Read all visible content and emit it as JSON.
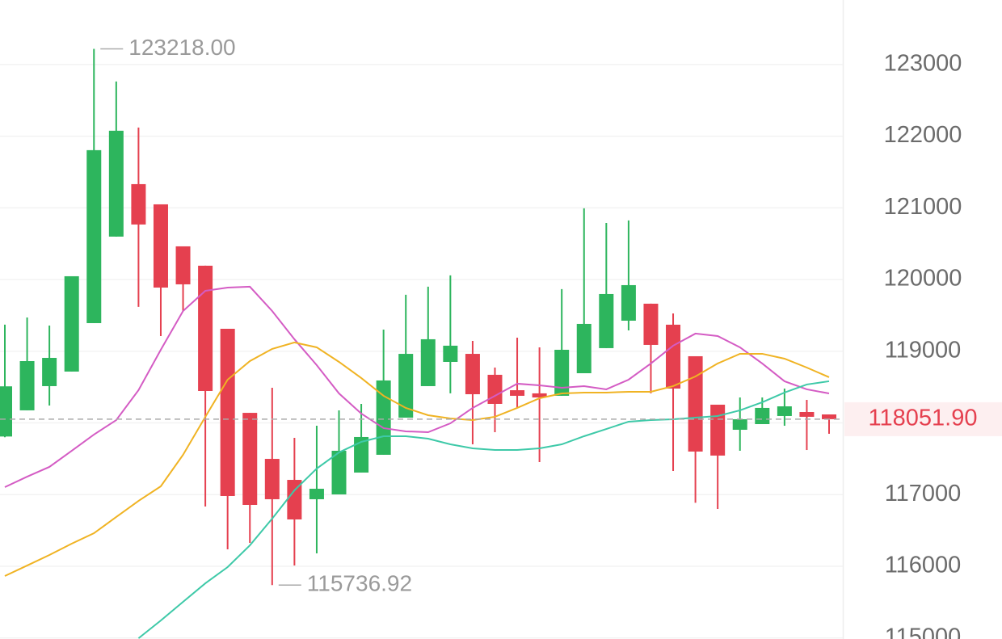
{
  "chart_data": {
    "type": "candlestick",
    "open": [
      117810,
      118175,
      118513,
      118716,
      119392,
      120599,
      121331,
      121049,
      120463,
      120193,
      119313,
      118140,
      117498,
      117205,
      116935,
      117002,
      117307,
      117555,
      118073,
      118513,
      118851,
      118963,
      118671,
      118456,
      118412,
      118378,
      118693,
      119043,
      119426,
      119663,
      119370,
      118930,
      118254,
      117904,
      117983,
      118096,
      118152,
      118118
    ],
    "high": [
      119370,
      119471,
      119358,
      120046,
      123218,
      122763,
      122121,
      121049,
      120463,
      120193,
      119313,
      118140,
      118490,
      117791,
      117960,
      118175,
      118265,
      119302,
      119787,
      119900,
      120058,
      119144,
      118772,
      119189,
      119054,
      119866,
      120993,
      120790,
      120824,
      119663,
      119527,
      118930,
      118254,
      118355,
      118355,
      118479,
      118321,
      118118
    ],
    "low": [
      117800,
      118175,
      118242,
      118716,
      119392,
      120599,
      119618,
      119212,
      119561,
      116833,
      116236,
      116326,
      115736.92,
      116010,
      116179,
      117002,
      117307,
      117555,
      118073,
      118513,
      118412,
      117701,
      117870,
      118209,
      117453,
      118378,
      118693,
      119043,
      119291,
      118412,
      117329,
      116885,
      116799,
      117611,
      117983,
      117960,
      117622,
      117848
    ],
    "close": [
      118510,
      118862,
      118907,
      120046,
      121805,
      122076,
      120768,
      119888,
      119933,
      118445,
      116980,
      116856,
      116935,
      116653,
      117081,
      117611,
      117803,
      118592,
      118963,
      119167,
      119077,
      118400,
      118265,
      118378,
      118355,
      119020,
      119381,
      119798,
      119922,
      119088,
      118479,
      117600,
      117544,
      118051,
      118209,
      118231,
      118085,
      118051.9
    ],
    "up_color": "#2db55d",
    "down_color": "#e5404f",
    "series": [
      {
        "color": "#d45cc4",
        "values": [
          117104,
          117250,
          117386,
          117611,
          117837,
          118039,
          118457,
          119020,
          119561,
          119843,
          119888,
          119900,
          119561,
          119167,
          118806,
          118411,
          118130,
          117927,
          117882,
          117870,
          117994,
          118209,
          118378,
          118547,
          118524,
          118490,
          118513,
          118468,
          118603,
          118829,
          119077,
          119246,
          119212,
          119054,
          118829,
          118581,
          118468,
          118411
        ]
      },
      {
        "color": "#f0b323",
        "values": [
          115864,
          116010,
          116157,
          116315,
          116461,
          116687,
          116912,
          117115,
          117555,
          118085,
          118603,
          118862,
          119032,
          119122,
          119054,
          118851,
          118626,
          118378,
          118209,
          118107,
          118062,
          118039,
          118085,
          118209,
          118344,
          118411,
          118423,
          118423,
          118434,
          118434,
          118513,
          118648,
          118829,
          118964,
          118964,
          118896,
          118772,
          118637
        ]
      },
      {
        "color": "#3ec9a8",
        "values": [
          null,
          null,
          null,
          null,
          null,
          null,
          114995,
          115243,
          115503,
          115762,
          115988,
          116292,
          116664,
          117059,
          117363,
          117588,
          117735,
          117814,
          117814,
          117780,
          117701,
          117645,
          117622,
          117622,
          117645,
          117701,
          117814,
          117915,
          118017,
          118039,
          118051,
          118073,
          118096,
          118175,
          118288,
          118423,
          118536,
          118581
        ]
      }
    ],
    "ylim": [
      114985,
      123900
    ],
    "yticks": [
      115000,
      116000,
      117000,
      118000,
      119000,
      120000,
      121000,
      122000,
      123000
    ],
    "grid": true,
    "last_price": {
      "value": 118051.9,
      "label": "118051.90"
    },
    "high_annotation": {
      "value": 123218,
      "label": "123218.00"
    },
    "low_annotation": {
      "value": 115736.92,
      "label": "115736.92"
    }
  }
}
